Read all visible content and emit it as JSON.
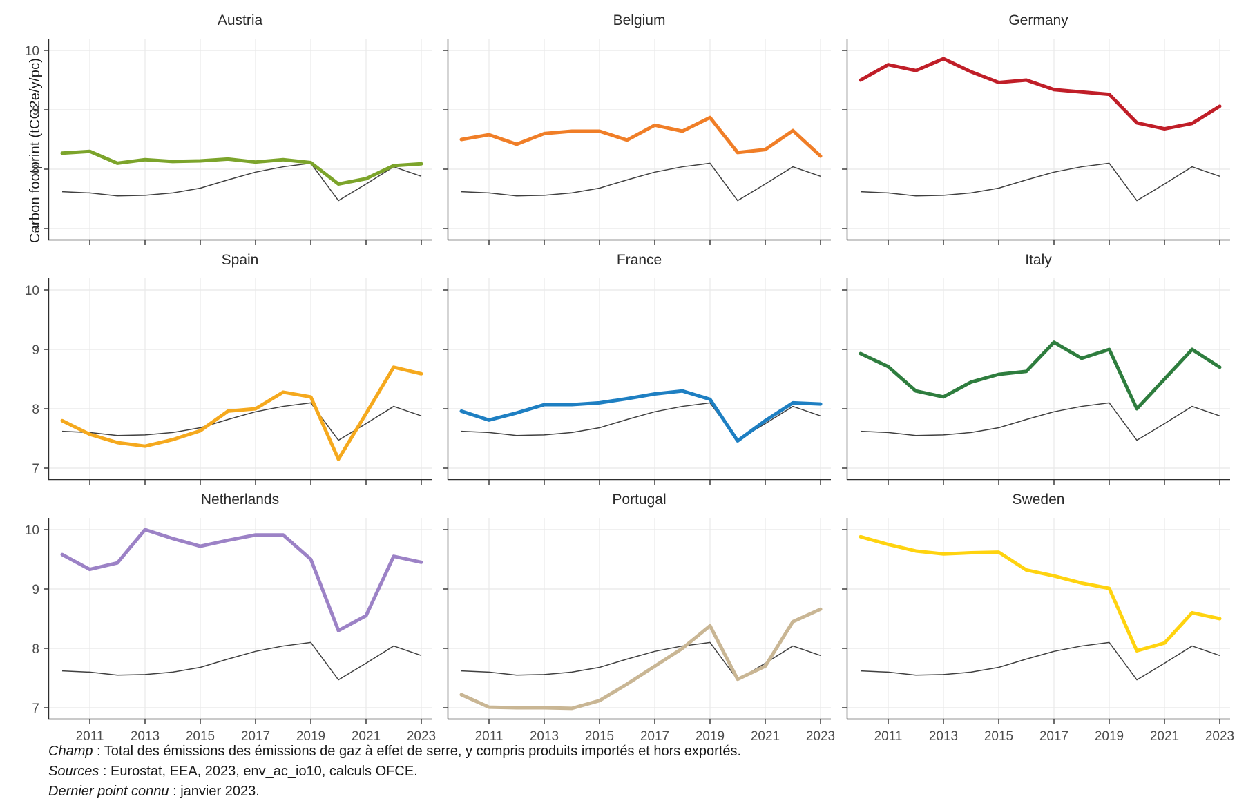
{
  "figure": {
    "y_axis_title": "Carbon footprint (tCO2e/y/pc)",
    "footnotes": [
      {
        "label": "Champ",
        "text": " : Total des émissions des émissions de gaz à effet de serre, y compris produits importés et hors exportés."
      },
      {
        "label": "Sources",
        "text": " : Eurostat, EEA, 2023, env_ac_io10, calculs OFCE."
      },
      {
        "label": "Dernier point connu",
        "text": " : janvier 2023."
      }
    ]
  },
  "chart_data": {
    "type": "line",
    "ylabel": "Carbon footprint (tCO2e/y/pc)",
    "x": [
      2010,
      2011,
      2012,
      2013,
      2014,
      2015,
      2016,
      2017,
      2018,
      2019,
      2020,
      2021,
      2022,
      2023
    ],
    "x_tick_labels": [
      "2011",
      "2013",
      "2015",
      "2017",
      "2019",
      "2021",
      "2023"
    ],
    "x_ticks": [
      2011,
      2013,
      2015,
      2017,
      2019,
      2021,
      2023
    ],
    "y_ticks": [
      10,
      9,
      8,
      7
    ],
    "y_tick_labels": [
      "10",
      "9",
      "8",
      "7"
    ],
    "ylim": [
      6.84,
      10.16
    ],
    "xlim": [
      2009.5,
      2023.4
    ],
    "grid": true,
    "legend": "none",
    "facets": [
      {
        "name": "Austria",
        "color": "#7CA42B",
        "values": [
          8.27,
          8.3,
          8.1,
          8.16,
          8.13,
          8.14,
          8.17,
          8.12,
          8.16,
          8.11,
          7.75,
          7.84,
          8.06,
          8.09
        ]
      },
      {
        "name": "Belgium",
        "color": "#F07E27",
        "values": [
          8.5,
          8.58,
          8.42,
          8.6,
          8.64,
          8.64,
          8.49,
          8.74,
          8.64,
          8.87,
          8.28,
          8.33,
          8.65,
          8.22
        ]
      },
      {
        "name": "Germany",
        "color": "#C01E28",
        "values": [
          9.5,
          9.76,
          9.66,
          9.86,
          9.64,
          9.46,
          9.5,
          9.34,
          9.3,
          9.26,
          8.78,
          8.68,
          8.77,
          9.06
        ]
      },
      {
        "name": "Spain",
        "color": "#F5A91E",
        "values": [
          7.8,
          7.57,
          7.43,
          7.37,
          7.48,
          7.63,
          7.96,
          8.0,
          8.28,
          8.2,
          7.15,
          7.92,
          8.7,
          8.59
        ]
      },
      {
        "name": "France",
        "color": "#1E7FC2",
        "values": [
          7.96,
          7.81,
          7.93,
          8.07,
          8.07,
          8.1,
          8.17,
          8.25,
          8.3,
          8.16,
          7.46,
          7.8,
          8.1,
          8.08
        ]
      },
      {
        "name": "Italy",
        "color": "#2E7D3E",
        "values": [
          8.93,
          8.71,
          8.3,
          8.2,
          8.45,
          8.58,
          8.63,
          9.12,
          8.85,
          9.0,
          8.0,
          8.5,
          9.0,
          8.7
        ]
      },
      {
        "name": "Netherlands",
        "color": "#9C82C6",
        "values": [
          9.58,
          9.33,
          9.44,
          10.0,
          9.85,
          9.72,
          9.82,
          9.91,
          9.91,
          9.5,
          8.3,
          8.55,
          9.55,
          9.45
        ]
      },
      {
        "name": "Portugal",
        "color": "#C9B694",
        "values": [
          7.22,
          7.01,
          7.0,
          7.0,
          6.99,
          7.12,
          7.4,
          7.7,
          8.0,
          8.38,
          7.48,
          7.7,
          8.45,
          8.66
        ]
      },
      {
        "name": "Sweden",
        "color": "#FFD30F",
        "values": [
          9.88,
          9.75,
          9.64,
          9.59,
          9.61,
          9.62,
          9.32,
          9.22,
          9.1,
          9.01,
          7.96,
          8.09,
          8.6,
          8.5
        ]
      }
    ],
    "reference_line": {
      "color": "#404040",
      "values": [
        7.62,
        7.6,
        7.55,
        7.56,
        7.6,
        7.68,
        7.82,
        7.95,
        8.04,
        8.1,
        7.47,
        7.75,
        8.04,
        7.88
      ]
    },
    "style": {
      "grid_color": "#e8e8e8",
      "axis_color": "#2e2e2e",
      "tick_label_color": "#4d4d4d",
      "series_width": 5,
      "reference_width": 1.5
    }
  }
}
